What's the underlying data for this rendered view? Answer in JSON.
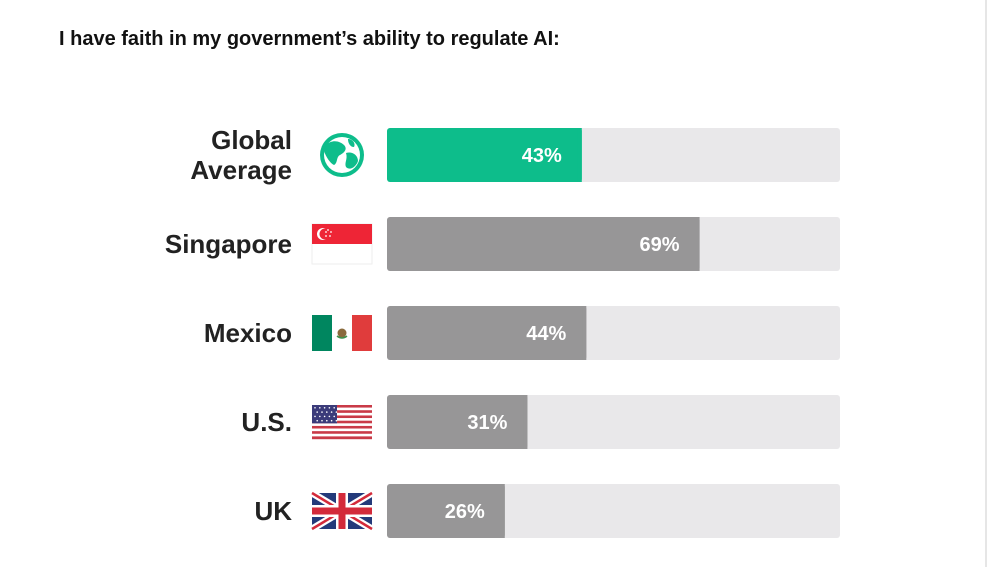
{
  "title": "I have faith in my government’s ability to regulate AI:",
  "colors": {
    "highlight": "#0dbd8b",
    "bar": "#979697",
    "track": "#e9e8ea",
    "label": "#222222",
    "value_text": "#ffffff"
  },
  "chart_data": {
    "type": "bar",
    "orientation": "horizontal",
    "title": "I have faith in my government’s ability to regulate AI:",
    "categories": [
      "Global Average",
      "Singapore",
      "Mexico",
      "U.S.",
      "UK"
    ],
    "category_lines": [
      [
        "Global",
        "Average"
      ],
      [
        "Singapore"
      ],
      [
        "Mexico"
      ],
      [
        "U.S."
      ],
      [
        "UK"
      ]
    ],
    "icons": [
      "globe-icon",
      "singapore-flag-icon",
      "mexico-flag-icon",
      "us-flag-icon",
      "uk-flag-icon"
    ],
    "values": [
      43,
      69,
      44,
      31,
      26
    ],
    "value_labels": [
      "43%",
      "69%",
      "44%",
      "31%",
      "26%"
    ],
    "highlight_index": 0,
    "xlim": [
      0,
      100
    ],
    "grid": false,
    "legend": "none"
  }
}
